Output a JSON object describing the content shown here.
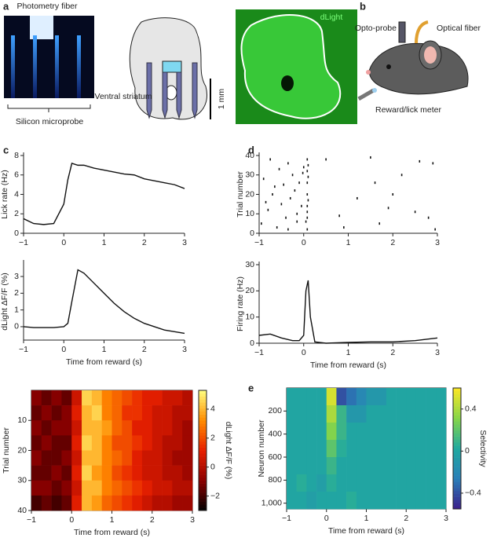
{
  "panels": [
    "a",
    "b",
    "c",
    "d",
    "e"
  ],
  "illustrations": {
    "photo_label": "Photometry fiber",
    "probe_label": "Silicon microprobe",
    "region_label": "Ventral striatum",
    "scale_label": "1 mm",
    "image_label": "dLight",
    "opto_label": "Opto-probe",
    "fiber_label": "Optical fiber",
    "meter_label": "Reward/lick meter"
  },
  "chart_data": [
    {
      "type": "line",
      "ylabel": "Lick rate (Hz)",
      "xlim": [
        -1,
        3
      ],
      "ylim": [
        0,
        8
      ],
      "xticks": [
        {
          "value": -1,
          "label": "−1"
        },
        0,
        1,
        2,
        3
      ],
      "yticks": [
        0,
        2,
        4,
        6,
        8
      ],
      "x": [
        -1,
        -0.75,
        -0.5,
        -0.25,
        0,
        0.1,
        0.2,
        0.35,
        0.5,
        0.75,
        1,
        1.25,
        1.5,
        1.75,
        2,
        2.25,
        2.5,
        2.75,
        3
      ],
      "series": [
        {
          "color": "#111111",
          "values": [
            1.5,
            1.0,
            0.9,
            1.0,
            3,
            5.5,
            7.2,
            7.0,
            7.0,
            6.7,
            6.5,
            6.3,
            6.1,
            6.0,
            5.6,
            5.4,
            5.2,
            5.0,
            4.6
          ]
        }
      ]
    },
    {
      "type": "line",
      "ylabel": "dLight ΔF/F (%)",
      "xlabel": "Time from reward (s)",
      "xlim": [
        -1,
        3
      ],
      "ylim": [
        -0.8,
        3.8
      ],
      "xticks": [
        {
          "value": -1,
          "label": "−1"
        },
        0,
        1,
        2,
        3
      ],
      "yticks": [
        0,
        1,
        2,
        3
      ],
      "x": [
        -1,
        -0.75,
        -0.5,
        -0.25,
        0,
        0.1,
        0.2,
        0.35,
        0.5,
        0.75,
        1,
        1.25,
        1.5,
        1.75,
        2,
        2.25,
        2.5,
        2.75,
        3
      ],
      "series": [
        {
          "color": "#111111",
          "values": [
            0,
            -0.05,
            -0.05,
            -0.05,
            0,
            0.2,
            1.5,
            3.4,
            3.2,
            2.6,
            2.0,
            1.4,
            0.9,
            0.5,
            0.2,
            0,
            -0.2,
            -0.3,
            -0.4
          ]
        }
      ]
    },
    {
      "type": "scatter",
      "ylabel": "Trial number",
      "xlim": [
        -1,
        3
      ],
      "ylim": [
        0,
        40
      ],
      "xticks": [
        {
          "value": -1,
          "label": "−1"
        },
        0,
        1,
        2,
        3
      ],
      "yticks": [
        0,
        10,
        20,
        30,
        40
      ],
      "color": "#111111",
      "x": [
        -0.95,
        -0.9,
        -0.8,
        -0.75,
        -0.7,
        -0.6,
        -0.55,
        -0.5,
        -0.45,
        -0.4,
        -0.35,
        -0.3,
        -0.25,
        -0.2,
        -0.15,
        -0.1,
        -0.05,
        0,
        0.05,
        0.08,
        0.08,
        0.08,
        0.08,
        0.08,
        0.08,
        0.08,
        0.08,
        0.1,
        0.1,
        0.1,
        0.5,
        0.8,
        1.2,
        1.5,
        1.6,
        1.7,
        2.0,
        2.2,
        2.5,
        2.6,
        2.8,
        2.9,
        2.95,
        -0.85,
        -0.65,
        -0.35,
        -0.15,
        -0.02,
        0.9,
        1.9
      ],
      "values": [
        5,
        28,
        12,
        38,
        20,
        3,
        33,
        15,
        25,
        8,
        36,
        18,
        30,
        22,
        10,
        26,
        14,
        34,
        6,
        2,
        8,
        14,
        20,
        26,
        32,
        38,
        11,
        17,
        29,
        35,
        38,
        9,
        18,
        39,
        26,
        5,
        20,
        30,
        11,
        37,
        8,
        36,
        2,
        16,
        24,
        2,
        6,
        31,
        3,
        13
      ]
    },
    {
      "type": "line",
      "ylabel": "Firing rate (Hz)",
      "xlabel": "Time from reward (s)",
      "xlim": [
        -1,
        3
      ],
      "ylim": [
        0,
        30
      ],
      "xticks": [
        {
          "value": -1,
          "label": "−1"
        },
        0,
        1,
        2,
        3
      ],
      "yticks": [
        0,
        10,
        20,
        30
      ],
      "x": [
        -1,
        -0.75,
        -0.5,
        -0.25,
        -0.1,
        0,
        0.05,
        0.1,
        0.15,
        0.25,
        0.5,
        1,
        1.5,
        2,
        2.5,
        3
      ],
      "series": [
        {
          "color": "#111111",
          "values": [
            3,
            3.5,
            2,
            1,
            1,
            3,
            20,
            24,
            10,
            0.5,
            0,
            0.3,
            0.5,
            0.5,
            1,
            2
          ]
        }
      ]
    },
    {
      "type": "heatmap",
      "ylabel": "Trial number",
      "xlabel": "Time from reward (s)",
      "clabel": "dLight ΔF/F (%)",
      "xlim": [
        -1,
        3
      ],
      "ylim": [
        40,
        0
      ],
      "xticks": [
        {
          "value": -1,
          "label": "−1"
        },
        0,
        1,
        2,
        3
      ],
      "yticks": [
        10,
        20,
        30,
        40
      ],
      "clim": [
        -3,
        5.3
      ],
      "cticks": [
        {
          "value": -2,
          "label": "−2"
        },
        0,
        2,
        4
      ],
      "colormap": [
        "#000000",
        "#8b0000",
        "#e82000",
        "#ff8c00",
        "#ffff80"
      ],
      "xbins": [
        -1,
        -0.75,
        -0.5,
        -0.25,
        0,
        0.25,
        0.5,
        0.75,
        1,
        1.25,
        1.5,
        1.75,
        2,
        2.25,
        2.5,
        2.75,
        3
      ],
      "ybins": [
        0,
        5,
        10,
        15,
        20,
        25,
        30,
        35,
        40
      ],
      "z": [
        [
          -1,
          -1.5,
          -1,
          -1.5,
          0.5,
          4.5,
          4,
          3,
          2.5,
          2,
          1.5,
          1,
          1,
          0.5,
          0.5,
          0
        ],
        [
          -1.5,
          -1,
          -1.5,
          -1,
          1,
          4,
          4.5,
          3,
          2.5,
          1.5,
          1.5,
          1,
          0.5,
          0.5,
          0,
          0
        ],
        [
          -1,
          -1.5,
          -1,
          -1,
          0.5,
          4,
          4,
          3.5,
          2.5,
          2,
          1,
          1,
          0.5,
          0.5,
          0,
          -0.5
        ],
        [
          -1.5,
          -1,
          -1.5,
          -1.5,
          1,
          4.5,
          4,
          3,
          2,
          2,
          1.5,
          1,
          0.5,
          0,
          0,
          -0.5
        ],
        [
          -1,
          -1.5,
          -1.5,
          -1,
          0.5,
          4,
          4,
          3,
          2.5,
          2,
          1,
          0.5,
          0.5,
          0,
          -0.5,
          -0.5
        ],
        [
          -1.5,
          -1.5,
          -1,
          -1.5,
          1,
          4.5,
          3.5,
          3,
          2,
          1.5,
          1,
          0.5,
          0.5,
          0,
          0,
          -0.5
        ],
        [
          -1,
          -1,
          -1.5,
          -1,
          0.5,
          4,
          4,
          3,
          2.5,
          2,
          1.5,
          1,
          0.5,
          0.5,
          0,
          0
        ],
        [
          -2,
          -1.5,
          -2,
          -1.5,
          1,
          4,
          3.5,
          2.5,
          2,
          1.5,
          1,
          0.5,
          0,
          0,
          -0.5,
          -0.5
        ]
      ]
    },
    {
      "type": "heatmap",
      "ylabel": "Neuron number",
      "xlabel": "Time from reward (s)",
      "clabel": "Selectivity",
      "xlim": [
        -1,
        3
      ],
      "ylim": [
        1050,
        0
      ],
      "xticks": [
        {
          "value": -1,
          "label": "−1"
        },
        0,
        1,
        2,
        3
      ],
      "yticks": [
        200,
        400,
        600,
        800,
        {
          "value": 1000,
          "label": "1,000"
        }
      ],
      "clim": [
        -0.55,
        0.6
      ],
      "cticks": [
        {
          "value": -0.4,
          "label": "−0.4"
        },
        0,
        0.4
      ],
      "colormap": [
        "#3b1e8a",
        "#2a7fb8",
        "#20a9a0",
        "#86d549",
        "#fde725"
      ],
      "xbins": [
        -1,
        -0.75,
        -0.5,
        -0.25,
        0,
        0.25,
        0.5,
        0.75,
        1,
        1.25,
        1.5,
        1.75,
        2,
        2.25,
        2.5,
        2.75,
        3
      ],
      "ybins": [
        0,
        150,
        300,
        450,
        600,
        750,
        900,
        1050
      ],
      "z": [
        [
          0,
          0,
          0,
          0,
          0.5,
          -0.4,
          -0.3,
          -0.2,
          -0.1,
          -0.1,
          0,
          0,
          0,
          0,
          0,
          0
        ],
        [
          0,
          0,
          0,
          0,
          0.4,
          0.1,
          -0.1,
          -0.1,
          0,
          0,
          0,
          0,
          0,
          0,
          0,
          0
        ],
        [
          0,
          0,
          0,
          0,
          0.3,
          0.1,
          0,
          0,
          0,
          0,
          0,
          0,
          0,
          0,
          0,
          0
        ],
        [
          0,
          0,
          0,
          0,
          0.2,
          0.05,
          0,
          0,
          0,
          0,
          0,
          0,
          0,
          0,
          0,
          0
        ],
        [
          0,
          0,
          0,
          0,
          0.1,
          0,
          0,
          0,
          0,
          0,
          0,
          0,
          0,
          0,
          0,
          0
        ],
        [
          0,
          0.05,
          0,
          -0.05,
          0.05,
          0,
          0,
          0,
          0,
          0,
          0,
          0,
          0,
          0,
          0,
          0
        ],
        [
          0,
          0,
          -0.05,
          0,
          0,
          0,
          0.05,
          0,
          0,
          0,
          0,
          0,
          0,
          0,
          0,
          0
        ]
      ]
    }
  ]
}
